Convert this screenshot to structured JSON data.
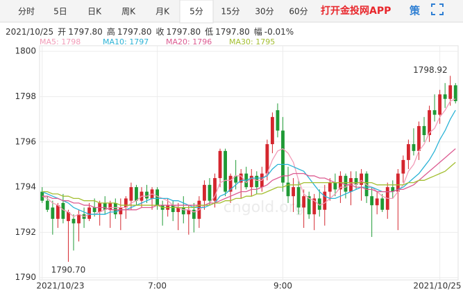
{
  "toolbar": {
    "tabs": [
      "分时",
      "5日",
      "日K",
      "周K",
      "月K",
      "5分",
      "15分",
      "30分",
      "60分"
    ],
    "selected": 5,
    "promo": "打开金投网APP",
    "strategy": "策"
  },
  "chart_data": {
    "type": "candlestick",
    "info": {
      "date": "2021/10/25",
      "fields": [
        {
          "label": "开",
          "value": "1797.80"
        },
        {
          "label": "高",
          "value": "1797.80"
        },
        {
          "label": "收",
          "value": "1797.80"
        },
        {
          "label": "低",
          "value": "1797.80"
        },
        {
          "label": "幅",
          "value": "-0.01%"
        }
      ]
    },
    "watermark": "cngold.org",
    "categories": [
      "2021/10/23",
      null,
      null,
      null,
      null,
      null,
      null,
      null,
      null,
      null,
      null,
      null,
      null,
      null,
      null,
      null,
      null,
      null,
      null,
      null,
      null,
      null,
      "7:00",
      null,
      null,
      null,
      null,
      null,
      null,
      null,
      null,
      null,
      null,
      null,
      null,
      null,
      null,
      null,
      null,
      null,
      null,
      null,
      null,
      null,
      null,
      null,
      "9:00",
      null,
      null,
      null,
      null,
      null,
      null,
      null,
      null,
      null,
      null,
      null,
      null,
      null,
      null,
      null,
      null,
      null,
      null,
      null,
      null,
      null,
      null,
      null,
      null,
      null,
      null,
      null,
      null,
      null,
      "2021/10/25",
      null,
      null,
      null
    ],
    "open": [
      1793.8,
      1793.4,
      1793.1,
      1792.6,
      1793.3,
      1792.5,
      1792.6,
      1792.4,
      1792.8,
      1792.6,
      1793.1,
      1792.9,
      1793.3,
      1793.0,
      1793.3,
      1792.8,
      1793.1,
      1793.4,
      1794.0,
      1793.4,
      1793.8,
      1793.5,
      1793.9,
      1793.2,
      1793.0,
      1793.2,
      1792.9,
      1793.1,
      1792.8,
      1793.0,
      1792.6,
      1793.4,
      1794.1,
      1793.4,
      1794.4,
      1795.6,
      1793.8,
      1794.5,
      1794.2,
      1794.6,
      1794.0,
      1794.5,
      1794.0,
      1794.6,
      1795.9,
      1797.4,
      1796.5,
      1794.2,
      1793.6,
      1794.0,
      1793.1,
      1793.6,
      1792.8,
      1793.5,
      1793.0,
      1793.8,
      1794.2,
      1793.9,
      1794.5,
      1793.8,
      1794.4,
      1794.1,
      1794.6,
      1793.6,
      1793.2,
      1793.5,
      1793.0,
      1794.0,
      1793.8,
      1794.6,
      1795.2,
      1795.9,
      1795.6,
      1796.7,
      1796.3,
      1797.4,
      1797.2,
      1798.1,
      1797.9,
      1798.5
    ],
    "high": [
      1794.0,
      1793.6,
      1793.4,
      1793.3,
      1793.7,
      1793.0,
      1792.8,
      1793.0,
      1793.1,
      1793.3,
      1793.5,
      1793.4,
      1793.6,
      1793.4,
      1793.5,
      1793.5,
      1793.6,
      1794.2,
      1794.1,
      1794.0,
      1794.1,
      1794.0,
      1794.0,
      1793.4,
      1793.5,
      1793.4,
      1793.3,
      1793.6,
      1793.2,
      1793.3,
      1793.6,
      1794.3,
      1794.4,
      1794.6,
      1795.7,
      1795.7,
      1794.6,
      1795.2,
      1794.8,
      1794.9,
      1794.8,
      1794.7,
      1794.9,
      1796.1,
      1797.3,
      1797.7,
      1797.1,
      1794.9,
      1794.4,
      1794.3,
      1793.9,
      1793.8,
      1793.7,
      1793.9,
      1794.1,
      1794.4,
      1794.6,
      1794.7,
      1794.6,
      1794.7,
      1794.7,
      1794.8,
      1794.7,
      1794.0,
      1793.8,
      1793.7,
      1794.2,
      1794.3,
      1794.8,
      1795.4,
      1796.1,
      1796.6,
      1796.9,
      1797.1,
      1797.6,
      1798.1,
      1798.3,
      1798.6,
      1798.92,
      1798.6
    ],
    "low": [
      1793.3,
      1792.9,
      1791.9,
      1792.2,
      1792.4,
      1790.7,
      1791.2,
      1791.6,
      1792.2,
      1792.5,
      1792.7,
      1792.3,
      1792.8,
      1792.2,
      1792.6,
      1792.1,
      1792.6,
      1793.0,
      1793.2,
      1793.1,
      1793.3,
      1793.0,
      1793.0,
      1792.3,
      1792.7,
      1792.5,
      1792.1,
      1792.4,
      1791.9,
      1792.0,
      1792.2,
      1793.0,
      1793.2,
      1793.1,
      1794.0,
      1793.6,
      1793.3,
      1793.9,
      1793.5,
      1793.9,
      1793.6,
      1793.7,
      1793.8,
      1794.3,
      1795.5,
      1796.2,
      1793.8,
      1793.3,
      1792.9,
      1792.8,
      1792.2,
      1792.6,
      1792.1,
      1792.7,
      1792.3,
      1793.4,
      1793.6,
      1793.3,
      1793.5,
      1793.2,
      1793.9,
      1793.4,
      1793.3,
      1791.8,
      1792.8,
      1792.9,
      1792.6,
      1793.5,
      1792.1,
      1794.2,
      1794.8,
      1795.4,
      1795.2,
      1796.0,
      1796.0,
      1796.9,
      1796.8,
      1797.5,
      1797.6,
      1797.7
    ],
    "close": [
      1793.4,
      1793.0,
      1792.6,
      1793.2,
      1792.6,
      1792.9,
      1792.4,
      1792.8,
      1792.6,
      1793.1,
      1792.9,
      1793.3,
      1793.0,
      1793.3,
      1792.8,
      1793.1,
      1793.5,
      1794.0,
      1793.4,
      1793.8,
      1793.5,
      1793.9,
      1793.2,
      1793.0,
      1793.2,
      1792.9,
      1793.1,
      1792.8,
      1793.0,
      1792.6,
      1793.4,
      1794.1,
      1793.4,
      1794.4,
      1795.6,
      1793.8,
      1794.5,
      1794.2,
      1794.6,
      1794.0,
      1794.5,
      1794.0,
      1794.6,
      1795.9,
      1797.1,
      1796.5,
      1794.2,
      1793.6,
      1794.0,
      1793.1,
      1793.6,
      1792.8,
      1793.5,
      1793.0,
      1793.8,
      1794.2,
      1793.9,
      1794.5,
      1793.8,
      1794.4,
      1794.1,
      1794.6,
      1793.6,
      1793.2,
      1793.5,
      1793.0,
      1794.0,
      1793.8,
      1794.6,
      1795.2,
      1795.9,
      1795.6,
      1796.7,
      1796.3,
      1797.4,
      1797.2,
      1798.1,
      1797.9,
      1798.5,
      1797.8
    ],
    "up_color": "#d4262e",
    "down_color": "#1f9a35",
    "series": [
      {
        "name": "MA5: 1798",
        "color": "#f29cb8",
        "values": [
          1793.6,
          1793.5,
          1793.3,
          1793.2,
          1793.0,
          1792.9,
          1792.7,
          1792.8,
          1792.7,
          1792.8,
          1792.8,
          1792.9,
          1793.0,
          1793.1,
          1793.1,
          1793.1,
          1793.1,
          1793.3,
          1793.4,
          1793.6,
          1793.6,
          1793.7,
          1793.6,
          1793.5,
          1793.4,
          1793.2,
          1793.1,
          1793.0,
          1793.0,
          1792.9,
          1793.0,
          1793.2,
          1793.3,
          1793.6,
          1794.2,
          1794.3,
          1794.3,
          1794.5,
          1794.5,
          1794.2,
          1794.4,
          1794.3,
          1794.3,
          1794.6,
          1795.2,
          1795.6,
          1795.7,
          1795.5,
          1795.1,
          1794.3,
          1793.7,
          1793.5,
          1793.4,
          1793.2,
          1793.3,
          1793.5,
          1793.7,
          1794.0,
          1794.0,
          1794.2,
          1794.1,
          1794.3,
          1794.1,
          1794.0,
          1793.8,
          1793.6,
          1793.5,
          1793.5,
          1793.8,
          1794.1,
          1794.7,
          1795.0,
          1795.6,
          1795.9,
          1796.4,
          1796.6,
          1797.1,
          1797.4,
          1797.8,
          1797.9
        ]
      },
      {
        "name": "MA10: 1797",
        "color": "#2bb3d6",
        "values": [
          1793.8,
          1793.7,
          1793.6,
          1793.5,
          1793.4,
          1793.3,
          1793.1,
          1793.0,
          1792.9,
          1792.8,
          1792.8,
          1792.8,
          1792.8,
          1792.9,
          1792.9,
          1793.0,
          1793.0,
          1793.1,
          1793.2,
          1793.3,
          1793.4,
          1793.5,
          1793.5,
          1793.5,
          1793.5,
          1793.4,
          1793.4,
          1793.3,
          1793.2,
          1793.1,
          1793.1,
          1793.1,
          1793.2,
          1793.3,
          1793.6,
          1793.7,
          1793.9,
          1794.1,
          1794.3,
          1794.3,
          1794.4,
          1794.4,
          1794.4,
          1794.5,
          1794.8,
          1795.0,
          1795.0,
          1795.0,
          1794.9,
          1794.8,
          1794.7,
          1794.4,
          1794.1,
          1793.8,
          1793.6,
          1793.5,
          1793.5,
          1793.6,
          1793.7,
          1793.8,
          1793.9,
          1794.0,
          1794.0,
          1794.0,
          1793.9,
          1793.8,
          1793.8,
          1793.8,
          1793.9,
          1794.0,
          1794.2,
          1794.4,
          1794.6,
          1794.9,
          1795.2,
          1795.6,
          1796.1,
          1796.5,
          1797.0,
          1797.4
        ]
      },
      {
        "name": "MA20: 1796",
        "color": "#dc5b91",
        "values": [
          1793.6,
          1793.6,
          1793.5,
          1793.5,
          1793.4,
          1793.4,
          1793.3,
          1793.3,
          1793.2,
          1793.2,
          1793.1,
          1793.1,
          1793.1,
          1793.0,
          1793.0,
          1793.0,
          1793.0,
          1793.0,
          1793.0,
          1793.1,
          1793.1,
          1793.1,
          1793.2,
          1793.2,
          1793.2,
          1793.2,
          1793.2,
          1793.2,
          1793.2,
          1793.2,
          1793.2,
          1793.2,
          1793.3,
          1793.3,
          1793.4,
          1793.5,
          1793.6,
          1793.7,
          1793.8,
          1793.8,
          1793.9,
          1793.9,
          1794.0,
          1794.1,
          1794.3,
          1794.4,
          1794.5,
          1794.5,
          1794.6,
          1794.6,
          1794.6,
          1794.5,
          1794.5,
          1794.4,
          1794.4,
          1794.3,
          1794.2,
          1794.2,
          1794.1,
          1794.1,
          1794.0,
          1794.0,
          1793.9,
          1793.9,
          1793.8,
          1793.8,
          1793.8,
          1793.8,
          1793.9,
          1793.9,
          1794.0,
          1794.1,
          1794.3,
          1794.5,
          1794.7,
          1794.9,
          1795.1,
          1795.3,
          1795.5,
          1795.7
        ]
      },
      {
        "name": "MA30: 1795",
        "color": "#a3be2f",
        "values": [
          1793.8,
          1793.8,
          1793.7,
          1793.7,
          1793.6,
          1793.6,
          1793.5,
          1793.5,
          1793.4,
          1793.4,
          1793.4,
          1793.3,
          1793.3,
          1793.3,
          1793.3,
          1793.2,
          1793.2,
          1793.2,
          1793.2,
          1793.2,
          1793.2,
          1793.2,
          1793.2,
          1793.1,
          1793.1,
          1793.1,
          1793.1,
          1793.1,
          1793.1,
          1793.1,
          1793.2,
          1793.2,
          1793.2,
          1793.3,
          1793.3,
          1793.4,
          1793.4,
          1793.5,
          1793.5,
          1793.6,
          1793.6,
          1793.7,
          1793.7,
          1793.8,
          1793.9,
          1794.0,
          1794.0,
          1794.1,
          1794.1,
          1794.1,
          1794.2,
          1794.2,
          1794.2,
          1794.2,
          1794.2,
          1794.2,
          1794.2,
          1794.2,
          1794.2,
          1794.2,
          1794.2,
          1794.2,
          1794.2,
          1794.2,
          1794.1,
          1794.1,
          1794.1,
          1794.1,
          1794.1,
          1794.1,
          1794.2,
          1794.2,
          1794.3,
          1794.3,
          1794.4,
          1794.5,
          1794.6,
          1794.7,
          1794.9,
          1795.1
        ]
      }
    ],
    "annotations": [
      {
        "value": 1798.92,
        "label": "1798.92"
      },
      {
        "value": 1790.7,
        "label": "1790.70"
      }
    ],
    "ylim": [
      1789.9,
      1800.25
    ],
    "yticks": [
      1790,
      1792,
      1794,
      1796,
      1798,
      1800
    ],
    "grid": true
  }
}
